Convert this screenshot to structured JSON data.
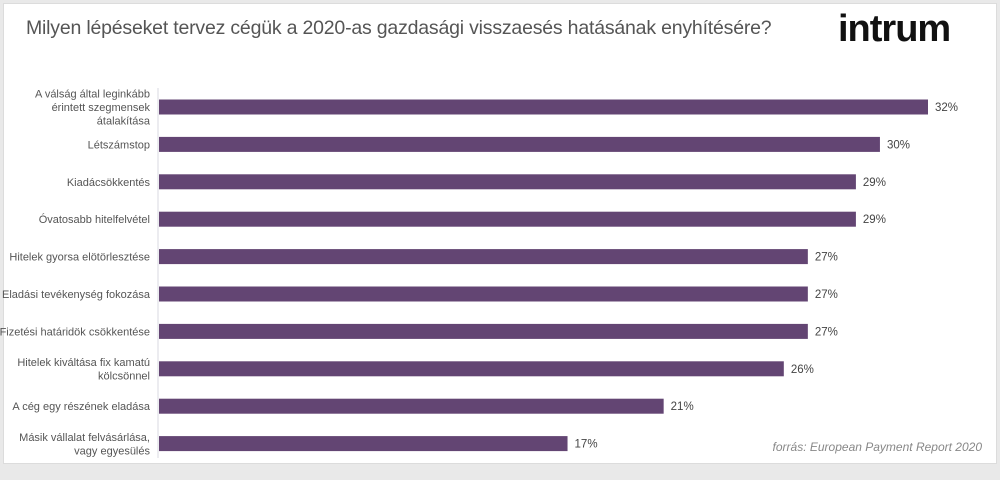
{
  "title": "Milyen lépéseket tervez cégük a 2020-as gazdasági visszaesés hatásának enyhítésére?",
  "logo": "intrum",
  "source": "forrás: European Payment Report 2020",
  "colors": {
    "bar": "#634573",
    "axis": "#d8d8e0"
  },
  "chart_data": {
    "type": "bar",
    "orientation": "horizontal",
    "title": "Milyen lépéseket tervez cégük a 2020-as gazdasági visszaesés hatásának enyhítésére?",
    "categories": [
      [
        "A válság által leginkább",
        "érintett szegmensek",
        "átalakítása"
      ],
      [
        "Létszámstop"
      ],
      [
        "Kiadácsökkentés"
      ],
      [
        "Óvatosabb hitelfelvétel"
      ],
      [
        "Hitelek gyorsa elötörlesztése"
      ],
      [
        "Eladási tevékenység fokozása"
      ],
      [
        "Fizetési határidök csökkentése"
      ],
      [
        "Hitelek kiváltása fix kamatú",
        "kölcsönnel"
      ],
      [
        "A cég egy részének eladása"
      ],
      [
        "Másik vállalat felvásárlása,",
        "vagy egyesülés"
      ]
    ],
    "values": [
      32,
      30,
      29,
      29,
      27,
      27,
      27,
      26,
      21,
      17
    ],
    "value_labels": [
      "32%",
      "30%",
      "29%",
      "29%",
      "27%",
      "27%",
      "27%",
      "26%",
      "21%",
      "17%"
    ],
    "xlim": [
      0,
      32
    ],
    "grid": false
  }
}
